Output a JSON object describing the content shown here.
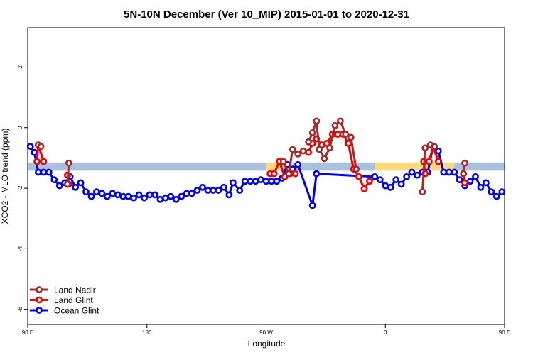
{
  "chart_data": {
    "type": "line",
    "title": "5N-10N December (Ver 10_MIP)   2015-01-01 to 2020-12-31",
    "xlabel": "Longitude",
    "ylabel": "XCO2 - MLO trend (ppm)",
    "xlim": [
      90,
      450
    ],
    "ylim": [
      -6.5,
      3.3
    ],
    "x_ticks": [
      {
        "value": 90,
        "label": "90 E"
      },
      {
        "value": 180,
        "label": "180"
      },
      {
        "value": 270,
        "label": "90 W"
      },
      {
        "value": 360,
        "label": "0"
      },
      {
        "value": 450,
        "label": "90 E"
      },
      {
        "value": 540,
        "label": "180"
      }
    ],
    "y_ticks": [
      {
        "value": -6,
        "label": "-6"
      },
      {
        "value": -4,
        "label": "-4"
      },
      {
        "value": -2,
        "label": "-2"
      },
      {
        "value": 0,
        "label": "0"
      },
      {
        "value": 2,
        "label": "2"
      }
    ],
    "bands": [
      {
        "color": "#a9c0de",
        "y_range": [
          -1.42,
          -1.15
        ],
        "segments": [
          [
            90,
            270
          ],
          [
            290,
            352
          ],
          [
            412,
            540
          ]
        ]
      },
      {
        "color": "#ffd97a",
        "y_range": [
          -1.42,
          -1.15
        ],
        "segments": [
          [
            270,
            290
          ],
          [
            352,
            412
          ]
        ]
      }
    ],
    "legend_position": "bottom-left",
    "series": [
      {
        "name": "Ocean Glint",
        "color": "#0000ee",
        "points": [
          [
            92,
            -0.62
          ],
          [
            95,
            -0.82
          ],
          [
            98,
            -1.47
          ],
          [
            102,
            -1.47
          ],
          [
            106,
            -1.47
          ],
          [
            110,
            -1.72
          ],
          [
            114,
            -1.92
          ],
          [
            118,
            -1.82
          ],
          [
            122,
            -1.62
          ],
          [
            126,
            -1.97
          ],
          [
            130,
            -1.82
          ],
          [
            134,
            -2.12
          ],
          [
            138,
            -2.27
          ],
          [
            142,
            -2.12
          ],
          [
            146,
            -2.17
          ],
          [
            150,
            -2.27
          ],
          [
            154,
            -2.17
          ],
          [
            158,
            -2.22
          ],
          [
            162,
            -2.27
          ],
          [
            166,
            -2.27
          ],
          [
            170,
            -2.32
          ],
          [
            174,
            -2.22
          ],
          [
            178,
            -2.32
          ],
          [
            182,
            -2.22
          ],
          [
            186,
            -2.22
          ],
          [
            190,
            -2.37
          ],
          [
            194,
            -2.32
          ],
          [
            198,
            -2.27
          ],
          [
            202,
            -2.37
          ],
          [
            206,
            -2.27
          ],
          [
            210,
            -2.17
          ],
          [
            214,
            -2.17
          ],
          [
            218,
            -2.07
          ],
          [
            222,
            -1.97
          ],
          [
            226,
            -2.07
          ],
          [
            230,
            -2.07
          ],
          [
            234,
            -2.07
          ],
          [
            238,
            -1.97
          ],
          [
            242,
            -2.22
          ],
          [
            245,
            -1.82
          ],
          [
            250,
            -2.07
          ],
          [
            254,
            -1.77
          ],
          [
            258,
            -1.77
          ],
          [
            262,
            -1.77
          ],
          [
            266,
            -1.72
          ],
          [
            270,
            -1.77
          ],
          [
            274,
            -1.77
          ],
          [
            278,
            -1.77
          ],
          [
            282,
            -1.67
          ],
          [
            286,
            -1.22
          ],
          [
            290,
            -1.37
          ],
          [
            294,
            -1.22
          ],
          [
            305,
            -2.57
          ],
          [
            308,
            -1.52
          ],
          [
            352,
            -1.62
          ],
          [
            356,
            -1.72
          ],
          [
            360,
            -1.92
          ],
          [
            364,
            -1.97
          ],
          [
            368,
            -1.72
          ],
          [
            372,
            -1.87
          ],
          [
            376,
            -1.62
          ],
          [
            380,
            -1.47
          ],
          [
            384,
            -1.57
          ],
          [
            388,
            -1.47
          ],
          [
            392,
            -1.47
          ],
          [
            396,
            -0.62
          ],
          [
            400,
            -0.77
          ],
          [
            404,
            -1.47
          ],
          [
            408,
            -1.47
          ],
          [
            412,
            -1.47
          ],
          [
            416,
            -1.72
          ],
          [
            420,
            -1.92
          ],
          [
            424,
            -1.77
          ],
          [
            428,
            -1.62
          ],
          [
            432,
            -1.97
          ],
          [
            436,
            -1.82
          ],
          [
            440,
            -2.12
          ],
          [
            444,
            -2.27
          ],
          [
            448,
            -2.12
          ],
          [
            452,
            -2.17
          ],
          [
            456,
            -2.27
          ],
          [
            460,
            -2.17
          ],
          [
            464,
            -2.22
          ]
        ]
      },
      {
        "name": "Land Glint",
        "color": "#ee0000",
        "segments": [
          [
            [
              97,
              -1.12
            ],
            [
              98,
              -0.57
            ],
            [
              102,
              -1.12
            ]
          ],
          [
            [
              120,
              -1.57
            ],
            [
              121,
              -1.87
            ]
          ],
          [
            [
              273,
              -1.52
            ],
            [
              276,
              -1.52
            ],
            [
              280,
              -1.12
            ],
            [
              284,
              -1.62
            ],
            [
              288,
              -1.52
            ],
            [
              292,
              -1.52
            ]
          ],
          [
            [
              302,
              -0.82
            ],
            [
              305,
              -0.52
            ],
            [
              308,
              -0.37
            ],
            [
              312,
              -0.57
            ],
            [
              316,
              -0.52
            ],
            [
              320,
              -0.22
            ],
            [
              324,
              -0.22
            ],
            [
              328,
              -0.22
            ],
            [
              332,
              -0.52
            ],
            [
              336,
              -1.37
            ],
            [
              340,
              -1.62
            ],
            [
              344,
              -2.02
            ],
            [
              348,
              -1.77
            ]
          ],
          [
            [
              389,
              -1.12
            ],
            [
              390,
              -1.52
            ]
          ],
          [
            [
              393,
              -1.12
            ],
            [
              396,
              -0.62
            ],
            [
              400,
              -1.12
            ]
          ],
          [
            [
              419,
              -1.52
            ],
            [
              420,
              -1.82
            ]
          ]
        ]
      },
      {
        "name": "Land Nadir",
        "color": "#a52a2a",
        "segments": [
          [
            [
              98,
              -0.57
            ],
            [
              100,
              -0.62
            ]
          ],
          [
            [
              121,
              -1.17
            ],
            [
              120,
              -1.87
            ]
          ],
          [
            [
              283,
              -1.12
            ],
            [
              287,
              -1.52
            ],
            [
              290,
              -0.72
            ],
            [
              294,
              -0.87
            ],
            [
              298,
              -0.77
            ]
          ],
          [
            [
              302,
              -0.47
            ],
            [
              305,
              -0.17
            ],
            [
              308,
              0.22
            ],
            [
              310,
              -0.72
            ],
            [
              314,
              -1.02
            ],
            [
              318,
              -0.67
            ],
            [
              322,
              0.07
            ],
            [
              326,
              0.22
            ],
            [
              330,
              -0.22
            ],
            [
              334,
              -0.32
            ],
            [
              338,
              -1.37
            ]
          ],
          [
            [
              388,
              -2.12
            ],
            [
              390,
              -0.67
            ]
          ],
          [
            [
              394,
              -0.57
            ],
            [
              397,
              -0.62
            ]
          ],
          [
            [
              420,
              -1.17
            ],
            [
              419,
              -1.52
            ]
          ]
        ]
      }
    ]
  }
}
